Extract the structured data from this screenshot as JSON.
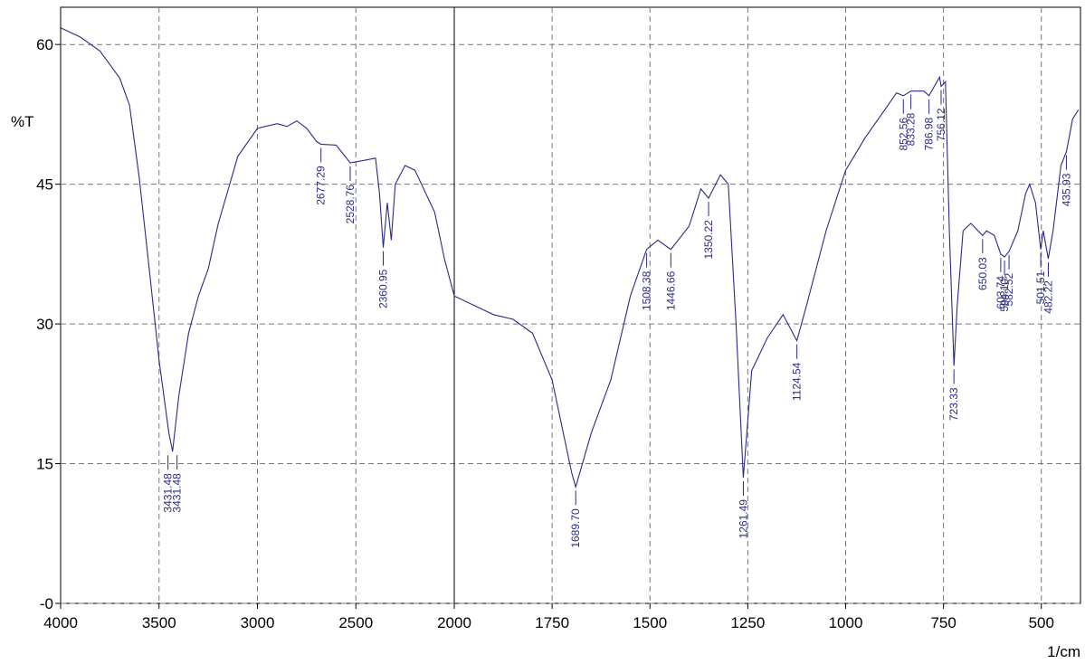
{
  "chart_data": {
    "type": "line",
    "y_label": "%T",
    "x_label": "1/cm",
    "color": "#2a2a8a",
    "grid": true,
    "xlim": [
      4000,
      400
    ],
    "x_scale_change": 2000,
    "xticks": [
      4000,
      3500,
      3000,
      2500,
      2000,
      1750,
      1500,
      1250,
      1000,
      750,
      500
    ],
    "ylim": [
      0,
      64
    ],
    "yticks": [
      {
        "value": 0,
        "label": "-0"
      },
      15,
      30,
      45,
      60
    ],
    "x": [
      4000,
      3900,
      3800,
      3700,
      3650,
      3600,
      3550,
      3500,
      3450,
      3431.48,
      3400,
      3350,
      3300,
      3250,
      3200,
      3100,
      3000,
      2900,
      2850,
      2800,
      2750,
      2700,
      2677.29,
      2600,
      2528.76,
      2450,
      2400,
      2380,
      2360.95,
      2340,
      2320,
      2300,
      2250,
      2200,
      2100,
      2050,
      2000,
      1900,
      1850,
      1800,
      1750,
      1700,
      1689.7,
      1650,
      1600,
      1550,
      1508.38,
      1480,
      1446.66,
      1400,
      1370,
      1350.22,
      1320,
      1300,
      1280,
      1261.49,
      1240,
      1200,
      1160,
      1124.54,
      1100,
      1050,
      1000,
      950,
      900,
      870,
      852.56,
      833.28,
      800,
      786.98,
      760,
      756.12,
      745,
      735,
      723.33,
      715,
      700,
      680,
      650.03,
      640,
      620,
      603.74,
      594.1,
      582.52,
      560,
      540,
      530,
      515,
      501.51,
      495,
      482.22,
      470,
      450,
      435.93,
      420,
      405
    ],
    "values": [
      61.8,
      60.8,
      59.3,
      56.4,
      53.5,
      45.6,
      35.9,
      26.1,
      18.3,
      16.3,
      22.2,
      29,
      33,
      35.9,
      40.7,
      48,
      51,
      51.5,
      51.2,
      51.8,
      51,
      49.6,
      49.3,
      49.2,
      47.3,
      47.6,
      47.8,
      44,
      38.2,
      43,
      39,
      45,
      47,
      46.5,
      42,
      37,
      33,
      31,
      30.5,
      29,
      24,
      14,
      12.5,
      18.3,
      24,
      33,
      38,
      39,
      38,
      40.5,
      44.5,
      43.5,
      46,
      45,
      30,
      13.5,
      25,
      28.5,
      31,
      28.2,
      32,
      40,
      46.5,
      50,
      53,
      54.8,
      54.5,
      55,
      55,
      54.5,
      56.5,
      55.5,
      56,
      40,
      25.5,
      32,
      40,
      40.8,
      39.5,
      40,
      39.5,
      37.5,
      37.2,
      37.8,
      40,
      44,
      45,
      43,
      38,
      40,
      37,
      40,
      47,
      48.5,
      52,
      53
    ],
    "peaks": {
      "x": [
        3431.48,
        3431.48,
        2677.29,
        2528.76,
        2360.95,
        1689.7,
        1508.38,
        1446.66,
        1350.22,
        1261.49,
        1124.54,
        852.56,
        833.28,
        786.98,
        756.12,
        723.33,
        650.03,
        603.74,
        594.1,
        582.52,
        501.51,
        482.22,
        435.93
      ],
      "y": [
        16.3,
        16.3,
        49.3,
        47.3,
        38.2,
        12.5,
        38,
        38,
        43.5,
        13.5,
        28.2,
        54.5,
        55,
        54.5,
        55.5,
        25.5,
        39.5,
        37.5,
        37.2,
        37.8,
        38,
        37,
        48.5
      ],
      "labels": [
        "3431.48",
        "3431.48",
        "2677.29",
        "2528.76",
        "2360.95",
        "1689.70",
        "1508.38",
        "1446.66",
        "1350.22",
        "1261.49",
        "1124.54",
        "852.56",
        "833.28",
        "786.98",
        "756.12",
        "723.33",
        "650.03",
        "603.74",
        "594.10",
        "582.52",
        "501.51",
        "482.22",
        "435.93"
      ]
    }
  }
}
